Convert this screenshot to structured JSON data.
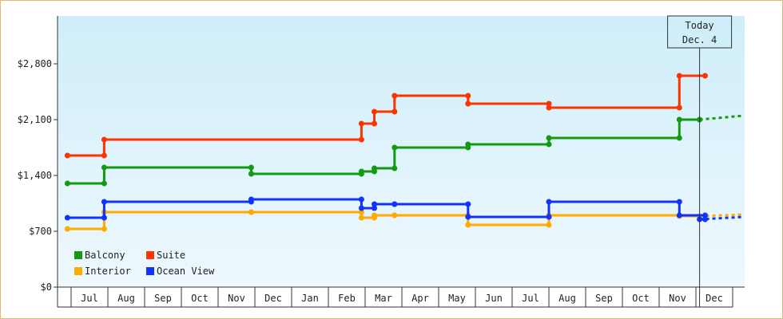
{
  "chart_data": {
    "type": "line",
    "title": "",
    "xlabel": "",
    "ylabel": "",
    "step": true,
    "ylim": [
      0,
      3400
    ],
    "yticks": [
      0,
      700,
      1400,
      2100,
      2800
    ],
    "ytick_labels": [
      "$0",
      "$700",
      "$1,400",
      "$2,100",
      "$2,800"
    ],
    "x_months": [
      "Jul",
      "Aug",
      "Sep",
      "Oct",
      "Nov",
      "Dec",
      "Jan",
      "Feb",
      "Mar",
      "Apr",
      "May",
      "Jun",
      "Jul",
      "Aug",
      "Sep",
      "Oct",
      "Nov",
      "Dec"
    ],
    "grid": false,
    "legend": "bottom-left",
    "today_marker": {
      "line1": "Today",
      "line2": "Dec. 4",
      "x": 17.1
    },
    "series": [
      {
        "name": "Balcony",
        "color": "#129b12",
        "points": [
          [
            -0.1,
            1300
          ],
          [
            0.9,
            1300
          ],
          [
            0.9,
            1500
          ],
          [
            4.9,
            1500
          ],
          [
            4.9,
            1420
          ],
          [
            7.9,
            1420
          ],
          [
            7.9,
            1450
          ],
          [
            8.25,
            1450
          ],
          [
            8.25,
            1490
          ],
          [
            8.8,
            1490
          ],
          [
            8.8,
            1750
          ],
          [
            10.8,
            1750
          ],
          [
            10.8,
            1790
          ],
          [
            13.0,
            1790
          ],
          [
            13.0,
            1870
          ],
          [
            16.55,
            1870
          ],
          [
            16.55,
            2100
          ],
          [
            17.1,
            2100
          ]
        ],
        "projection": [
          [
            17.1,
            2100
          ],
          [
            18.3,
            2150
          ]
        ]
      },
      {
        "name": "Suite",
        "color": "#ff3300",
        "points": [
          [
            -0.1,
            1650
          ],
          [
            0.9,
            1650
          ],
          [
            0.9,
            1850
          ],
          [
            7.9,
            1850
          ],
          [
            7.9,
            2050
          ],
          [
            8.25,
            2050
          ],
          [
            8.25,
            2200
          ],
          [
            8.8,
            2200
          ],
          [
            8.8,
            2400
          ],
          [
            10.8,
            2400
          ],
          [
            10.8,
            2300
          ],
          [
            13.0,
            2300
          ],
          [
            13.0,
            2250
          ],
          [
            16.55,
            2250
          ],
          [
            16.55,
            2650
          ],
          [
            17.25,
            2650
          ]
        ]
      },
      {
        "name": "Interior",
        "color": "#ffaa00",
        "points": [
          [
            -0.1,
            730
          ],
          [
            0.9,
            730
          ],
          [
            0.9,
            940
          ],
          [
            4.9,
            940
          ],
          [
            4.9,
            940
          ],
          [
            7.9,
            940
          ],
          [
            7.9,
            870
          ],
          [
            8.25,
            870
          ],
          [
            8.25,
            900
          ],
          [
            8.8,
            900
          ],
          [
            8.8,
            900
          ],
          [
            10.8,
            900
          ],
          [
            10.8,
            780
          ],
          [
            13.0,
            780
          ],
          [
            13.0,
            900
          ],
          [
            16.55,
            900
          ],
          [
            16.55,
            890
          ],
          [
            17.1,
            890
          ]
        ],
        "projection": [
          [
            17.1,
            890
          ],
          [
            18.3,
            910
          ]
        ]
      },
      {
        "name": "Ocean View",
        "color": "#1133ff",
        "points": [
          [
            -0.1,
            870
          ],
          [
            0.9,
            870
          ],
          [
            0.9,
            1070
          ],
          [
            4.9,
            1070
          ],
          [
            4.9,
            1100
          ],
          [
            7.9,
            1100
          ],
          [
            7.9,
            990
          ],
          [
            8.25,
            990
          ],
          [
            8.25,
            1040
          ],
          [
            8.8,
            1040
          ],
          [
            8.8,
            1040
          ],
          [
            10.8,
            1040
          ],
          [
            10.8,
            880
          ],
          [
            13.0,
            880
          ],
          [
            13.0,
            1070
          ],
          [
            16.55,
            1070
          ],
          [
            16.55,
            900
          ],
          [
            17.25,
            900
          ],
          [
            17.25,
            850
          ],
          [
            17.1,
            850
          ]
        ],
        "projection": [
          [
            17.1,
            850
          ],
          [
            18.3,
            880
          ]
        ]
      }
    ]
  },
  "legend": {
    "balcony": "Balcony",
    "suite": "Suite",
    "interior": "Interior",
    "ocean_view": "Ocean View"
  }
}
